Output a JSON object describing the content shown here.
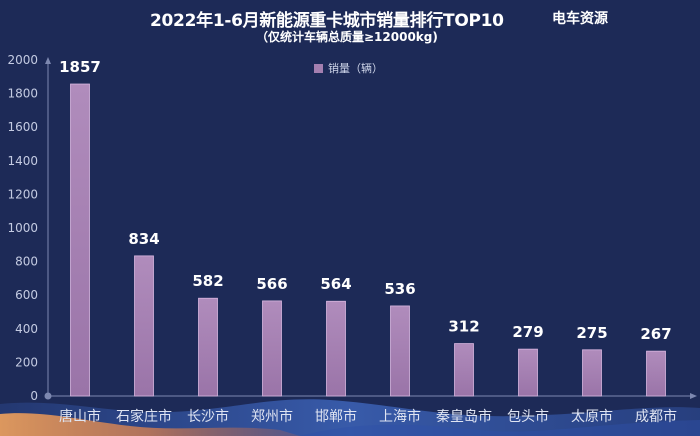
{
  "header": {
    "title": "2022年1-6月新能源重卡城市销量排行TOP10",
    "brand": "电车资源",
    "subtitle": "（仅统计车辆总质量≥12000kg)"
  },
  "colors": {
    "background": "#1d2a57",
    "bar": "#a47fb0",
    "bar_edge": "#d9b7e0",
    "axis_text": "#c4cbe2",
    "value_label": "#ffffff",
    "wave_orange": "#e8864a",
    "wave_blue": "#3f6fd8"
  },
  "chart_data": {
    "type": "bar",
    "title": "2022年1-6月新能源重卡城市销量排行TOP10",
    "subtitle": "（仅统计车辆总质量≥12000kg)",
    "legend": "销量（辆）",
    "legend_position": "top-center",
    "categories": [
      "唐山市",
      "石家庄市",
      "长沙市",
      "郑州市",
      "邯郸市",
      "上海市",
      "秦皇岛市",
      "包头市",
      "太原市",
      "成都市"
    ],
    "series": [
      {
        "name": "销量（辆）",
        "values": [
          1857,
          834,
          582,
          566,
          564,
          536,
          312,
          279,
          275,
          267
        ]
      }
    ],
    "ylim": [
      0,
      2000
    ],
    "yticks": [
      0,
      200,
      400,
      600,
      800,
      1000,
      1200,
      1400,
      1600,
      1800,
      2000
    ],
    "grid": false,
    "xlabel": "",
    "ylabel": ""
  }
}
